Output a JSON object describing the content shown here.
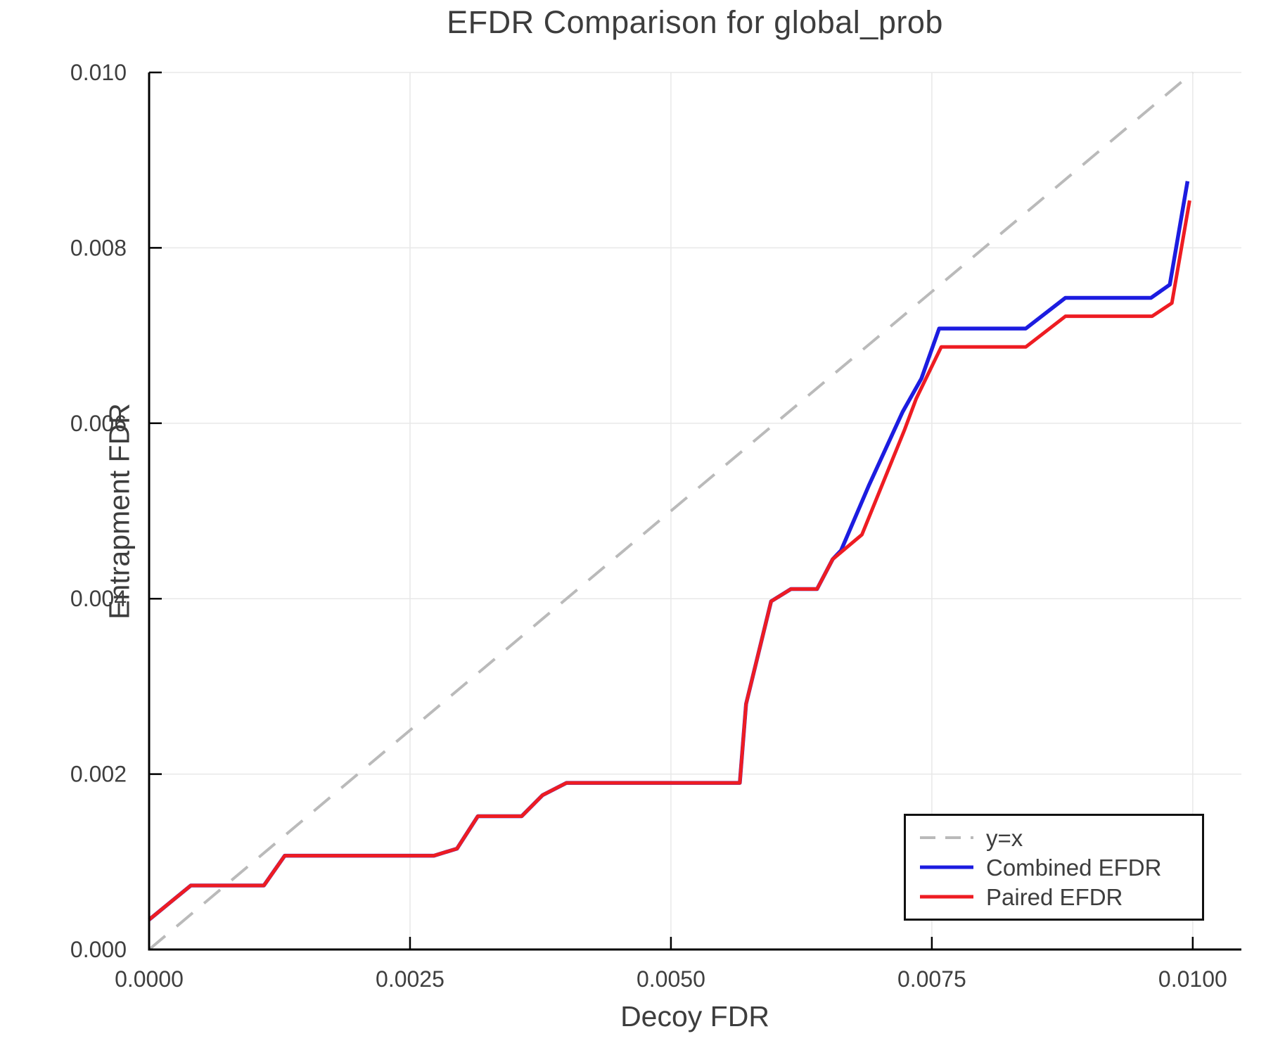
{
  "chart_data": {
    "type": "line",
    "title": "EFDR Comparison for global_prob",
    "xlabel": "Decoy FDR",
    "ylabel": "Entrapment FDR",
    "xlim": [
      0,
      0.010466
    ],
    "ylim": [
      0,
      0.01
    ],
    "grid": true,
    "legend_position": "bottom-right",
    "x_ticks": {
      "values": [
        0.0,
        0.0025,
        0.005,
        0.0075,
        0.01
      ],
      "labels": [
        "0.0000",
        "0.0025",
        "0.0050",
        "0.0075",
        "0.0100"
      ]
    },
    "y_ticks": {
      "values": [
        0.0,
        0.002,
        0.004,
        0.006,
        0.008,
        0.01
      ],
      "labels": [
        "0.000",
        "0.002",
        "0.004",
        "0.006",
        "0.008",
        "0.010"
      ]
    },
    "colors": {
      "grid": "#e8e8e8",
      "spine": "#000000",
      "text": "#3d3d3d",
      "tick_text": "#3f3f3f"
    },
    "series": [
      {
        "name": "y=x",
        "style": "dashed",
        "color": "#bababa",
        "width": 4,
        "points": [
          [
            0.0,
            0.0
          ],
          [
            0.01,
            0.01
          ]
        ]
      },
      {
        "name": "Combined EFDR",
        "style": "solid",
        "color": "#1c1ce0",
        "width": 5.5,
        "points": [
          [
            0.0,
            0.00034
          ],
          [
            0.0004,
            0.00073
          ],
          [
            0.0011,
            0.00073
          ],
          [
            0.0013,
            0.00107
          ],
          [
            0.00273,
            0.00107
          ],
          [
            0.00295,
            0.00115
          ],
          [
            0.00315,
            0.00152
          ],
          [
            0.00357,
            0.00152
          ],
          [
            0.00377,
            0.00176
          ],
          [
            0.004,
            0.0019
          ],
          [
            0.00566,
            0.0019
          ],
          [
            0.00572,
            0.0028
          ],
          [
            0.00596,
            0.00397
          ],
          [
            0.00615,
            0.00411
          ],
          [
            0.0064,
            0.00411
          ],
          [
            0.00655,
            0.00445
          ],
          [
            0.00663,
            0.00455
          ],
          [
            0.0069,
            0.0053
          ],
          [
            0.00722,
            0.00613
          ],
          [
            0.0074,
            0.00651
          ],
          [
            0.00757,
            0.00708
          ],
          [
            0.0084,
            0.00708
          ],
          [
            0.00878,
            0.00743
          ],
          [
            0.0096,
            0.00743
          ],
          [
            0.00978,
            0.00758
          ],
          [
            0.00995,
            0.00876
          ]
        ]
      },
      {
        "name": "Paired EFDR",
        "style": "solid",
        "color": "#ee1c22",
        "width": 5,
        "points": [
          [
            0.0,
            0.00034
          ],
          [
            0.0004,
            0.00073
          ],
          [
            0.0011,
            0.00073
          ],
          [
            0.0013,
            0.00107
          ],
          [
            0.00273,
            0.00107
          ],
          [
            0.00295,
            0.00115
          ],
          [
            0.00315,
            0.00152
          ],
          [
            0.00357,
            0.00152
          ],
          [
            0.00377,
            0.00176
          ],
          [
            0.004,
            0.0019
          ],
          [
            0.00566,
            0.0019
          ],
          [
            0.00572,
            0.0028
          ],
          [
            0.00596,
            0.00397
          ],
          [
            0.00615,
            0.00411
          ],
          [
            0.0064,
            0.00411
          ],
          [
            0.00655,
            0.00445
          ],
          [
            0.00683,
            0.00473
          ],
          [
            0.00724,
            0.00593
          ],
          [
            0.00735,
            0.00628
          ],
          [
            0.00759,
            0.00687
          ],
          [
            0.0084,
            0.00687
          ],
          [
            0.00878,
            0.00722
          ],
          [
            0.00961,
            0.00722
          ],
          [
            0.0098,
            0.00737
          ],
          [
            0.00997,
            0.00854
          ]
        ]
      }
    ]
  }
}
